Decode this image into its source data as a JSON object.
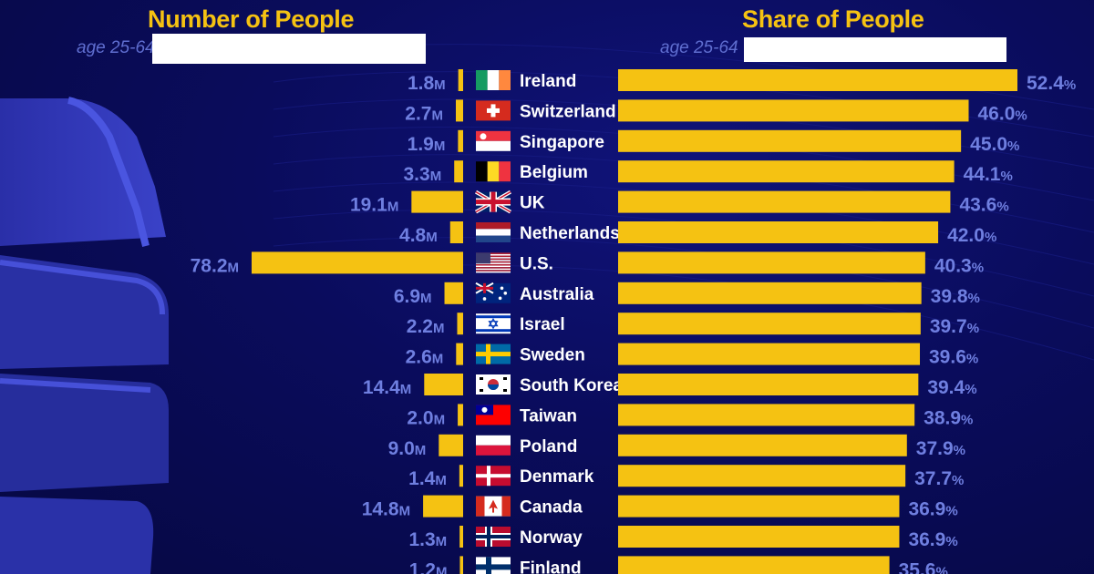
{
  "colors": {
    "bar": "#f5c212",
    "title": "#f5c212",
    "value_text": "#6f7fe0",
    "label_text": "#ffffff",
    "subtitle": "#5f6ed0"
  },
  "decoration": "stack-of-books-icon",
  "chart_data": [
    {
      "type": "bar",
      "orientation": "horizontal",
      "direction": "leftward",
      "title": "Number of People",
      "subtitle": "age 25-64",
      "unit": "M",
      "categories": [
        "Ireland",
        "Switzerland",
        "Singapore",
        "Belgium",
        "UK",
        "Netherlands",
        "U.S.",
        "Australia",
        "Israel",
        "Sweden",
        "South Korea",
        "Taiwan",
        "Poland",
        "Denmark",
        "Canada",
        "Norway",
        "Finland"
      ],
      "values": [
        1.8,
        2.7,
        1.9,
        3.3,
        19.1,
        4.8,
        78.2,
        6.9,
        2.2,
        2.6,
        14.4,
        2.0,
        9.0,
        1.4,
        14.8,
        1.3,
        1.2
      ],
      "xlim": [
        0,
        78.2
      ]
    },
    {
      "type": "bar",
      "orientation": "horizontal",
      "title": "Share of People",
      "subtitle": "age 25-64",
      "unit": "%",
      "categories": [
        "Ireland",
        "Switzerland",
        "Singapore",
        "Belgium",
        "UK",
        "Netherlands",
        "U.S.",
        "Australia",
        "Israel",
        "Sweden",
        "South Korea",
        "Taiwan",
        "Poland",
        "Denmark",
        "Canada",
        "Norway",
        "Finland"
      ],
      "values": [
        52.4,
        46.0,
        45.0,
        44.1,
        43.6,
        42.0,
        40.3,
        39.8,
        39.7,
        39.6,
        39.4,
        38.9,
        37.9,
        37.7,
        36.9,
        36.9,
        35.6
      ],
      "xlim": [
        0,
        52.4
      ]
    }
  ]
}
